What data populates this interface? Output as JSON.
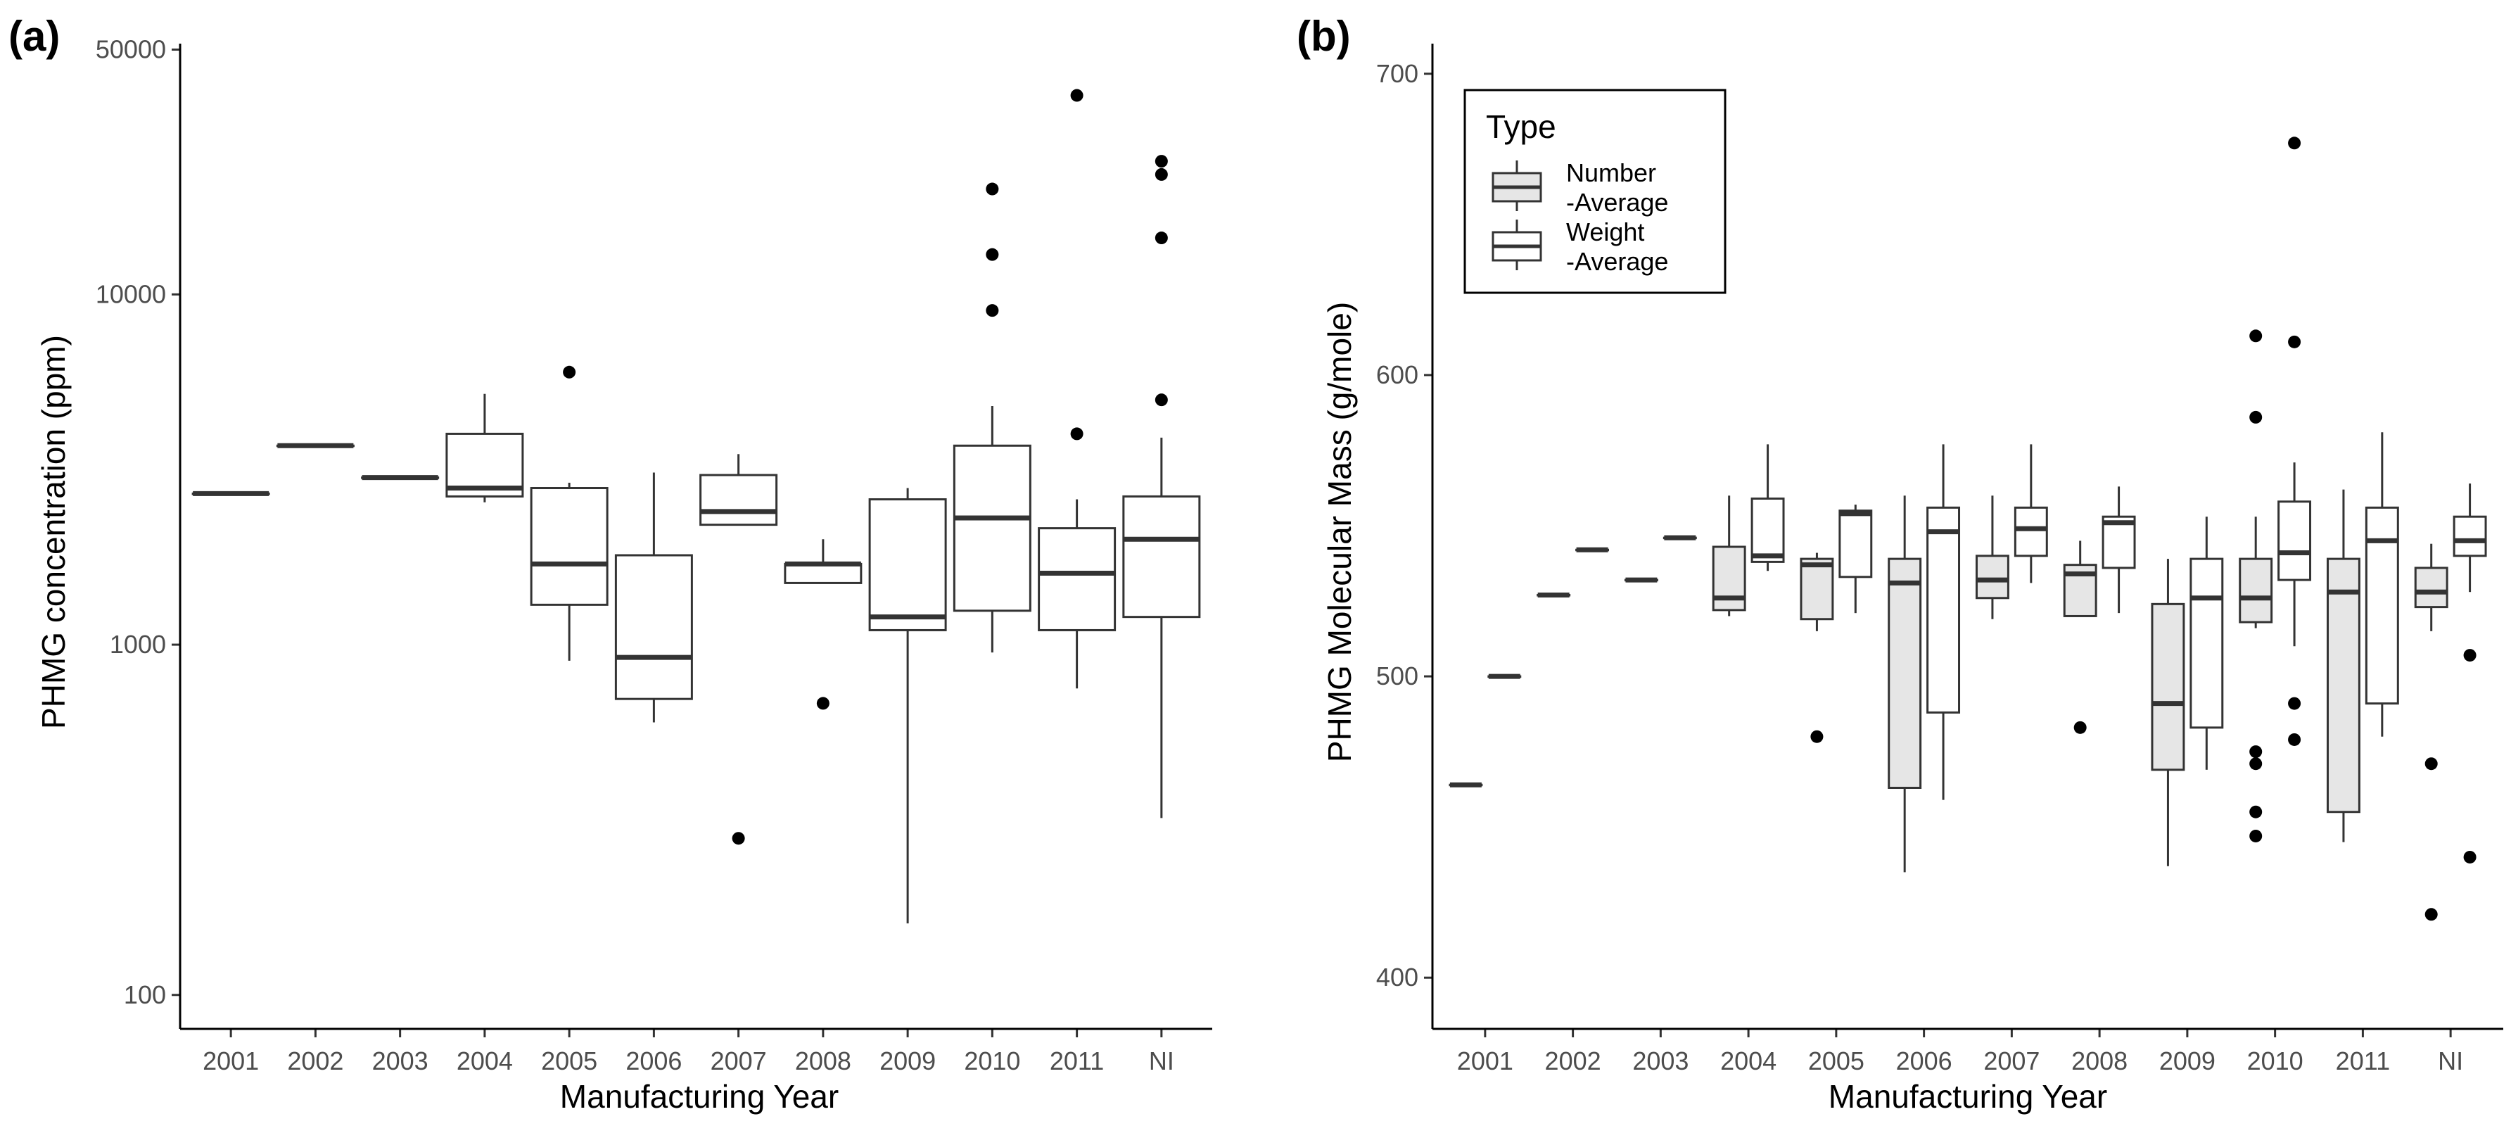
{
  "chart_data": [
    {
      "panel_label": "(a)",
      "type": "boxplot",
      "xlabel": "Manufacturing Year",
      "ylabel": "PHMG concentration (ppm)",
      "yscale": "log10",
      "ylim": [
        80,
        52000
      ],
      "yticks": [
        100,
        1000,
        10000,
        50000
      ],
      "ytick_labels": [
        "100",
        "1000",
        "10000",
        "50000"
      ],
      "categories": [
        "2001",
        "2002",
        "2003",
        "2004",
        "2005",
        "2006",
        "2007",
        "2008",
        "2009",
        "2010",
        "2011",
        "NI"
      ],
      "boxes": [
        {
          "category": "2001",
          "whisker_low": 2700,
          "q1": 2700,
          "median": 2700,
          "q3": 2700,
          "whisker_high": 2700,
          "outliers": []
        },
        {
          "category": "2002",
          "whisker_low": 3700,
          "q1": 3700,
          "median": 3700,
          "q3": 3700,
          "whisker_high": 3700,
          "outliers": []
        },
        {
          "category": "2003",
          "whisker_low": 3000,
          "q1": 3000,
          "median": 3000,
          "q3": 3000,
          "whisker_high": 3000,
          "outliers": []
        },
        {
          "category": "2004",
          "whisker_low": 2550,
          "q1": 2650,
          "median": 2800,
          "q3": 4000,
          "whisker_high": 5200,
          "outliers": []
        },
        {
          "category": "2005",
          "whisker_low": 900,
          "q1": 1300,
          "median": 1700,
          "q3": 2800,
          "whisker_high": 2900,
          "outliers": [
            6000
          ]
        },
        {
          "category": "2006",
          "whisker_low": 600,
          "q1": 700,
          "median": 920,
          "q3": 1800,
          "whisker_high": 3100,
          "outliers": []
        },
        {
          "category": "2007",
          "whisker_low": 2200,
          "q1": 2200,
          "median": 2400,
          "q3": 3050,
          "whisker_high": 3500,
          "outliers": [
            280
          ]
        },
        {
          "category": "2008",
          "whisker_low": 1500,
          "q1": 1500,
          "median": 1700,
          "q3": 1700,
          "whisker_high": 2000,
          "outliers": [
            680
          ]
        },
        {
          "category": "2009",
          "whisker_low": 160,
          "q1": 1100,
          "median": 1200,
          "q3": 2600,
          "whisker_high": 2800,
          "outliers": []
        },
        {
          "category": "2010",
          "whisker_low": 950,
          "q1": 1250,
          "median": 2300,
          "q3": 3700,
          "whisker_high": 4800,
          "outliers": [
            9000,
            13000,
            20000
          ]
        },
        {
          "category": "2011",
          "whisker_low": 750,
          "q1": 1100,
          "median": 1600,
          "q3": 2150,
          "whisker_high": 2600,
          "outliers": [
            4000,
            37000
          ]
        },
        {
          "category": "NI",
          "whisker_low": 320,
          "q1": 1200,
          "median": 2000,
          "q3": 2650,
          "whisker_high": 3900,
          "outliers": [
            5000,
            14500,
            22000,
            24000
          ]
        }
      ]
    },
    {
      "panel_label": "(b)",
      "type": "boxplot",
      "xlabel": "Manufacturing Year",
      "ylabel": "PHMG Molecular Mass (g/mole)",
      "ylim": [
        383,
        710
      ],
      "yticks": [
        400,
        500,
        600,
        700
      ],
      "ytick_labels": [
        "400",
        "500",
        "600",
        "700"
      ],
      "categories": [
        "2001",
        "2002",
        "2003",
        "2004",
        "2005",
        "2006",
        "2007",
        "2008",
        "2009",
        "2010",
        "2011",
        "NI"
      ],
      "legend": {
        "title": "Type",
        "position": "top-left",
        "entries": [
          {
            "line1": "Number",
            "line2": "-Average",
            "fill": "#e6e6e6"
          },
          {
            "line1": "Weight",
            "line2": "-Average",
            "fill": "#ffffff"
          }
        ]
      },
      "series": [
        {
          "name": "Number-Average",
          "fill": "#e6e6e6",
          "boxes": [
            {
              "category": "2001",
              "whisker_low": 464,
              "q1": 464,
              "median": 464,
              "q3": 464,
              "whisker_high": 464,
              "outliers": []
            },
            {
              "category": "2002",
              "whisker_low": 527,
              "q1": 527,
              "median": 527,
              "q3": 527,
              "whisker_high": 527,
              "outliers": []
            },
            {
              "category": "2003",
              "whisker_low": 532,
              "q1": 532,
              "median": 532,
              "q3": 532,
              "whisker_high": 532,
              "outliers": []
            },
            {
              "category": "2004",
              "whisker_low": 520,
              "q1": 522,
              "median": 526,
              "q3": 543,
              "whisker_high": 560,
              "outliers": []
            },
            {
              "category": "2005",
              "whisker_low": 515,
              "q1": 519,
              "median": 537,
              "q3": 539,
              "whisker_high": 541,
              "outliers": [
                480
              ]
            },
            {
              "category": "2006",
              "whisker_low": 435,
              "q1": 463,
              "median": 531,
              "q3": 539,
              "whisker_high": 560,
              "outliers": []
            },
            {
              "category": "2007",
              "whisker_low": 519,
              "q1": 526,
              "median": 532,
              "q3": 540,
              "whisker_high": 560,
              "outliers": []
            },
            {
              "category": "2008",
              "whisker_low": 520,
              "q1": 520,
              "median": 534,
              "q3": 537,
              "whisker_high": 545,
              "outliers": [
                483
              ]
            },
            {
              "category": "2009",
              "whisker_low": 437,
              "q1": 469,
              "median": 491,
              "q3": 524,
              "whisker_high": 539,
              "outliers": []
            },
            {
              "category": "2010",
              "whisker_low": 516,
              "q1": 518,
              "median": 526,
              "q3": 539,
              "whisker_high": 553,
              "outliers": [
                447,
                455,
                471,
                475,
                586,
                613
              ]
            },
            {
              "category": "2011",
              "whisker_low": 445,
              "q1": 455,
              "median": 528,
              "q3": 539,
              "whisker_high": 562,
              "outliers": []
            },
            {
              "category": "NI",
              "whisker_low": 515,
              "q1": 523,
              "median": 528,
              "q3": 536,
              "whisker_high": 544,
              "outliers": [
                421,
                471
              ]
            }
          ]
        },
        {
          "name": "Weight-Average",
          "fill": "#ffffff",
          "boxes": [
            {
              "category": "2001",
              "whisker_low": 500,
              "q1": 500,
              "median": 500,
              "q3": 500,
              "whisker_high": 500,
              "outliers": []
            },
            {
              "category": "2002",
              "whisker_low": 542,
              "q1": 542,
              "median": 542,
              "q3": 542,
              "whisker_high": 542,
              "outliers": []
            },
            {
              "category": "2003",
              "whisker_low": 546,
              "q1": 546,
              "median": 546,
              "q3": 546,
              "whisker_high": 546,
              "outliers": []
            },
            {
              "category": "2004",
              "whisker_low": 535,
              "q1": 538,
              "median": 540,
              "q3": 559,
              "whisker_high": 577,
              "outliers": []
            },
            {
              "category": "2005",
              "whisker_low": 521,
              "q1": 533,
              "median": 554,
              "q3": 555,
              "whisker_high": 557,
              "outliers": []
            },
            {
              "category": "2006",
              "whisker_low": 459,
              "q1": 488,
              "median": 548,
              "q3": 556,
              "whisker_high": 577,
              "outliers": []
            },
            {
              "category": "2007",
              "whisker_low": 531,
              "q1": 540,
              "median": 549,
              "q3": 556,
              "whisker_high": 577,
              "outliers": []
            },
            {
              "category": "2008",
              "whisker_low": 521,
              "q1": 536,
              "median": 551,
              "q3": 553,
              "whisker_high": 563,
              "outliers": []
            },
            {
              "category": "2009",
              "whisker_low": 469,
              "q1": 483,
              "median": 526,
              "q3": 539,
              "whisker_high": 553,
              "outliers": []
            },
            {
              "category": "2010",
              "whisker_low": 510,
              "q1": 532,
              "median": 541,
              "q3": 558,
              "whisker_high": 571,
              "outliers": [
                479,
                491,
                611,
                677
              ]
            },
            {
              "category": "2011",
              "whisker_low": 480,
              "q1": 491,
              "median": 545,
              "q3": 556,
              "whisker_high": 581,
              "outliers": []
            },
            {
              "category": "NI",
              "whisker_low": 528,
              "q1": 540,
              "median": 545,
              "q3": 553,
              "whisker_high": 564,
              "outliers": [
                440,
                507
              ]
            }
          ]
        }
      ]
    }
  ]
}
